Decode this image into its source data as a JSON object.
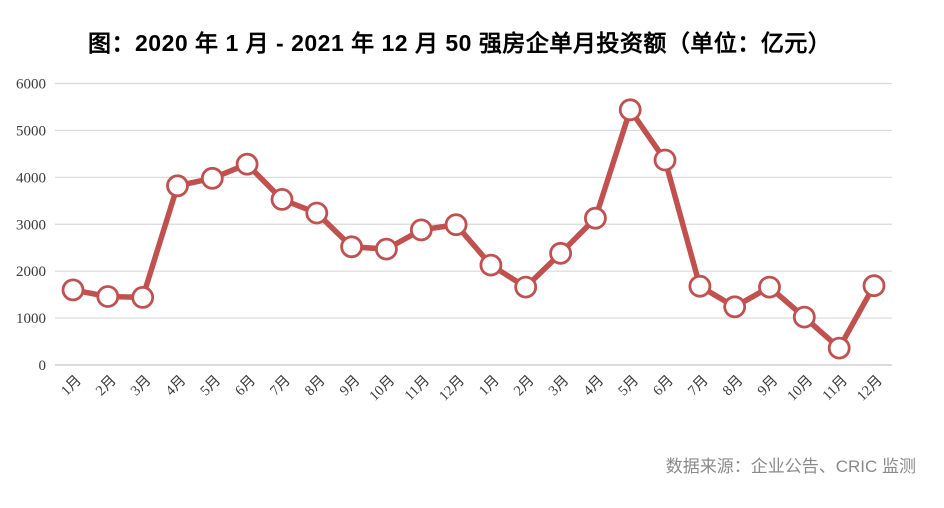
{
  "title": "图：2020 年 1 月 - 2021 年 12 月 50 强房企单月投资额（单位：亿元）",
  "source": "数据来源：企业公告、CRIC 监测",
  "colors": {
    "line": "#C2504E",
    "marker_fill": "#FFFFFF",
    "gridline": "#D9D9D9",
    "axis_line": "#C6C6C6",
    "tick_text": "#3B3B3B",
    "title_text": "#000000",
    "source_text": "#8A8A8A"
  },
  "chart_data": {
    "type": "line",
    "title": "图：2020 年 1 月 - 2021 年 12 月 50 强房企单月投资额（单位：亿元）",
    "xlabel": "",
    "ylabel": "",
    "ylim": [
      0,
      6000
    ],
    "yticks": [
      0,
      1000,
      2000,
      3000,
      4000,
      5000,
      6000
    ],
    "grid": true,
    "legend": false,
    "marker": "open-circle",
    "categories": [
      "1月",
      "2月",
      "3月",
      "4月",
      "5月",
      "6月",
      "7月",
      "8月",
      "9月",
      "10月",
      "11月",
      "12月",
      "1月",
      "2月",
      "3月",
      "4月",
      "5月",
      "6月",
      "7月",
      "8月",
      "9月",
      "10月",
      "11月",
      "12月"
    ],
    "series": [
      {
        "name": "50强房企单月投资额(亿元)",
        "values": [
          1600,
          1460,
          1440,
          3820,
          3980,
          4280,
          3530,
          3240,
          2520,
          2470,
          2880,
          2990,
          2130,
          1660,
          2380,
          3130,
          5440,
          4370,
          1680,
          1240,
          1660,
          1020,
          360,
          1690
        ]
      }
    ]
  }
}
